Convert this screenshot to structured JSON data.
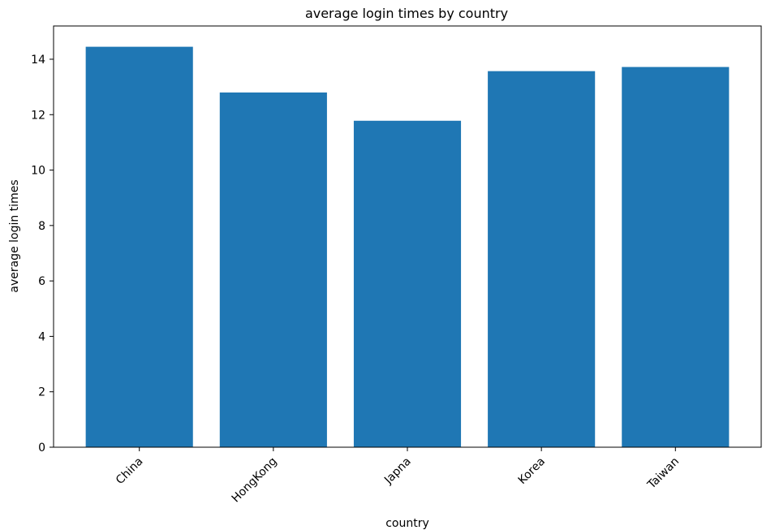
{
  "chart_data": {
    "type": "bar",
    "title": "average login times by country",
    "xlabel": "country",
    "ylabel": "average login times",
    "categories": [
      "China",
      "HongKong",
      "Japna",
      "Korea",
      "Taiwan"
    ],
    "values": [
      14.45,
      12.8,
      11.78,
      13.57,
      13.72
    ],
    "ylim": [
      0,
      15.2
    ],
    "yticks": [
      0,
      2,
      4,
      6,
      8,
      10,
      12,
      14
    ],
    "ytick_labels": [
      "0",
      "2",
      "4",
      "6",
      "8",
      "10",
      "12",
      "14"
    ],
    "xtick_rotation": -45,
    "bar_color": "#1f77b4",
    "grid": false,
    "legend": "none"
  }
}
